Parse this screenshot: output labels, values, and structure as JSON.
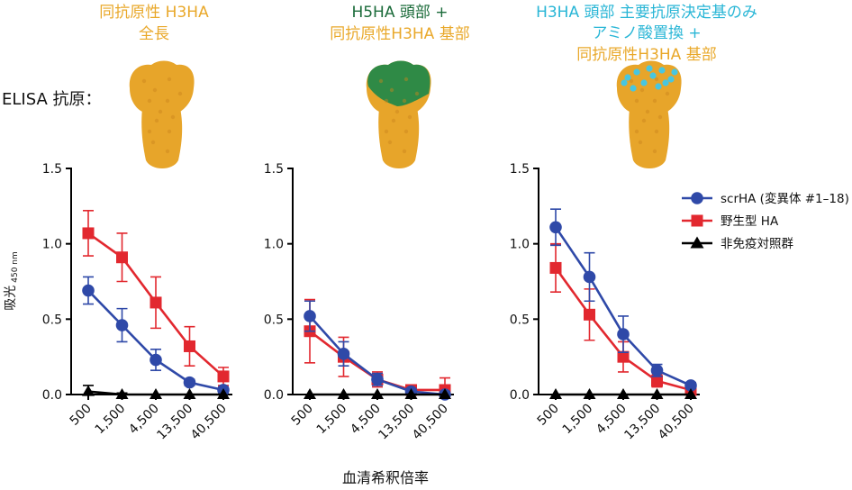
{
  "colors": {
    "orange": "#e9a82a",
    "green": "#1b6b3a",
    "cyan": "#29b6d6",
    "blue": "#2f49a8",
    "red": "#e2282f",
    "black": "#000000",
    "protein_orange": "#e7a52a",
    "protein_green": "#2f8a46",
    "protein_cyan": "#48c6e0"
  },
  "elisa_label": "ELISA 抗原：",
  "panel_titles": [
    [
      {
        "text": "同抗原性 H3HA",
        "color": "orange"
      },
      {
        "text": "全長",
        "color": "orange"
      }
    ],
    [
      {
        "text": "H5HA 頭部 +",
        "color": "green"
      },
      {
        "text": "同抗原性H3HA 基部",
        "color": "orange"
      }
    ],
    [
      {
        "text": "H3HA 頭部 主要抗原決定基のみ",
        "color": "cyan"
      },
      {
        "text": "アミノ酸置換 +",
        "color": "cyan"
      },
      {
        "text": "同抗原性H3HA 基部",
        "color": "orange"
      }
    ]
  ],
  "protein_icons": [
    "protein-full-orange-icon",
    "protein-green-head-icon",
    "protein-cyan-epitope-icon"
  ],
  "chart_data": {
    "type": "line",
    "ylabel": "吸光",
    "ylabel_sub": "450 nm",
    "xlabel": "血清希釈倍率",
    "x_ticks": [
      "500",
      "1,500",
      "4,500",
      "13,500",
      "40,500"
    ],
    "y_ticks": [
      "0.0",
      "0.5",
      "1.0",
      "1.5"
    ],
    "ylim": [
      0,
      1.5
    ],
    "legend": [
      {
        "label": "scrHA (変異体 #1–18)",
        "marker": "circle",
        "color": "blue"
      },
      {
        "label": "野生型 HA",
        "marker": "square",
        "color": "red"
      },
      {
        "label": "非免疫対照群",
        "marker": "triangle",
        "color": "black"
      }
    ],
    "legend_placement": "right of third panel",
    "panels": [
      {
        "series": [
          {
            "marker": "square",
            "color": "red",
            "values": [
              1.07,
              0.91,
              0.61,
              0.32,
              0.12
            ],
            "err": [
              0.15,
              0.16,
              0.17,
              0.13,
              0.06
            ]
          },
          {
            "marker": "circle",
            "color": "blue",
            "values": [
              0.69,
              0.46,
              0.23,
              0.08,
              0.03
            ],
            "err": [
              0.09,
              0.11,
              0.07,
              0.02,
              0.02
            ]
          },
          {
            "marker": "triangle",
            "color": "black",
            "values": [
              0.02,
              0.0,
              0.0,
              0.0,
              0.0
            ],
            "err": [
              0.04,
              0.01,
              0.0,
              0.0,
              0.0
            ]
          }
        ]
      },
      {
        "series": [
          {
            "marker": "square",
            "color": "red",
            "values": [
              0.42,
              0.25,
              0.1,
              0.03,
              0.03
            ],
            "err": [
              0.21,
              0.13,
              0.05,
              0.02,
              0.08
            ]
          },
          {
            "marker": "circle",
            "color": "blue",
            "values": [
              0.52,
              0.27,
              0.1,
              0.02,
              0.0
            ],
            "err": [
              0.1,
              0.08,
              0.04,
              0.02,
              0.02
            ]
          },
          {
            "marker": "triangle",
            "color": "black",
            "values": [
              0.0,
              0.0,
              0.0,
              0.0,
              0.0
            ],
            "err": [
              0.0,
              0.0,
              0.0,
              0.0,
              0.0
            ]
          }
        ]
      },
      {
        "series": [
          {
            "marker": "square",
            "color": "red",
            "values": [
              0.84,
              0.53,
              0.25,
              0.09,
              0.03
            ],
            "err": [
              0.16,
              0.17,
              0.1,
              0.04,
              0.02
            ]
          },
          {
            "marker": "circle",
            "color": "blue",
            "values": [
              1.11,
              0.78,
              0.4,
              0.16,
              0.06
            ],
            "err": [
              0.12,
              0.16,
              0.12,
              0.04,
              0.02
            ]
          },
          {
            "marker": "triangle",
            "color": "black",
            "values": [
              0.0,
              0.0,
              0.0,
              0.0,
              0.0
            ],
            "err": [
              0.0,
              0.0,
              0.0,
              0.0,
              0.0
            ]
          }
        ]
      }
    ]
  }
}
